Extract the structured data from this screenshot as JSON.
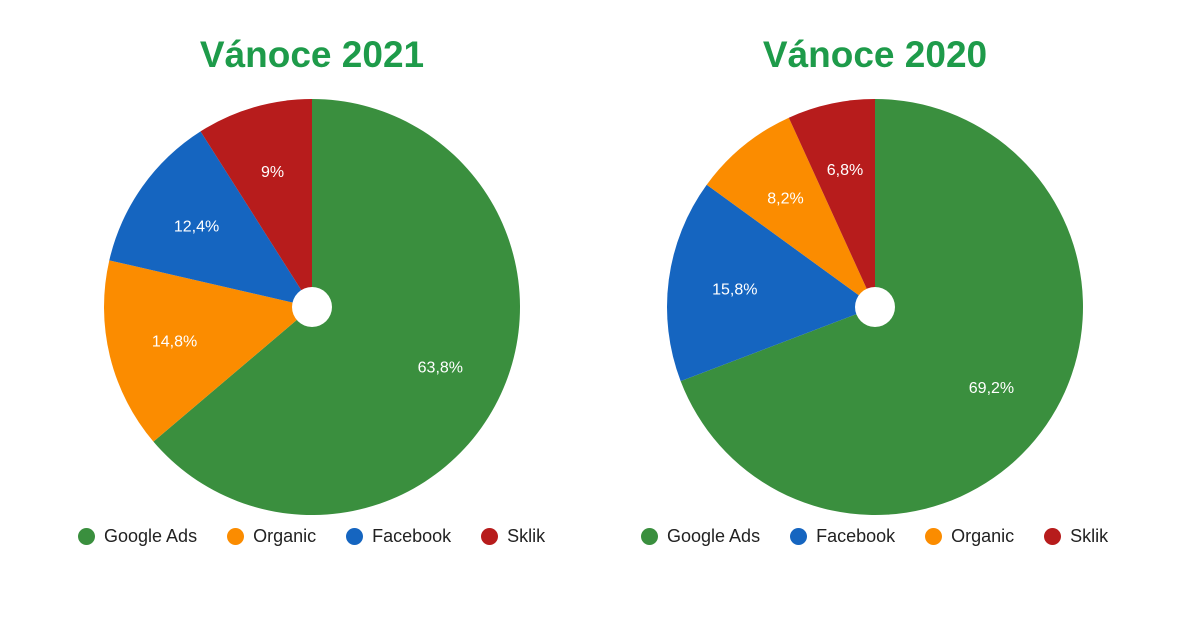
{
  "colors": {
    "title": "#1e9b4a",
    "Google Ads": "#3a8f3e",
    "Organic": "#fb8c00",
    "Facebook": "#1565c0",
    "Sklik": "#b71c1c"
  },
  "chart_data": [
    {
      "type": "pie",
      "title": "Vánoce 2021",
      "slices": [
        {
          "name": "Google Ads",
          "value": 63.8,
          "label": "63,8%"
        },
        {
          "name": "Organic",
          "value": 14.8,
          "label": "14,8%"
        },
        {
          "name": "Facebook",
          "value": 12.4,
          "label": "12,4%"
        },
        {
          "name": "Sklik",
          "value": 9,
          "label": "9%"
        }
      ],
      "legend": [
        "Google Ads",
        "Organic",
        "Facebook",
        "Sklik"
      ],
      "legend_position": "bottom"
    },
    {
      "type": "pie",
      "title": "Vánoce 2020",
      "slices": [
        {
          "name": "Google Ads",
          "value": 69.2,
          "label": "69,2%"
        },
        {
          "name": "Facebook",
          "value": 15.8,
          "label": "15,8%"
        },
        {
          "name": "Organic",
          "value": 8.2,
          "label": "8,2%"
        },
        {
          "name": "Sklik",
          "value": 6.8,
          "label": "6,8%"
        }
      ],
      "legend": [
        "Google Ads",
        "Facebook",
        "Organic",
        "Sklik"
      ],
      "legend_position": "bottom"
    }
  ]
}
